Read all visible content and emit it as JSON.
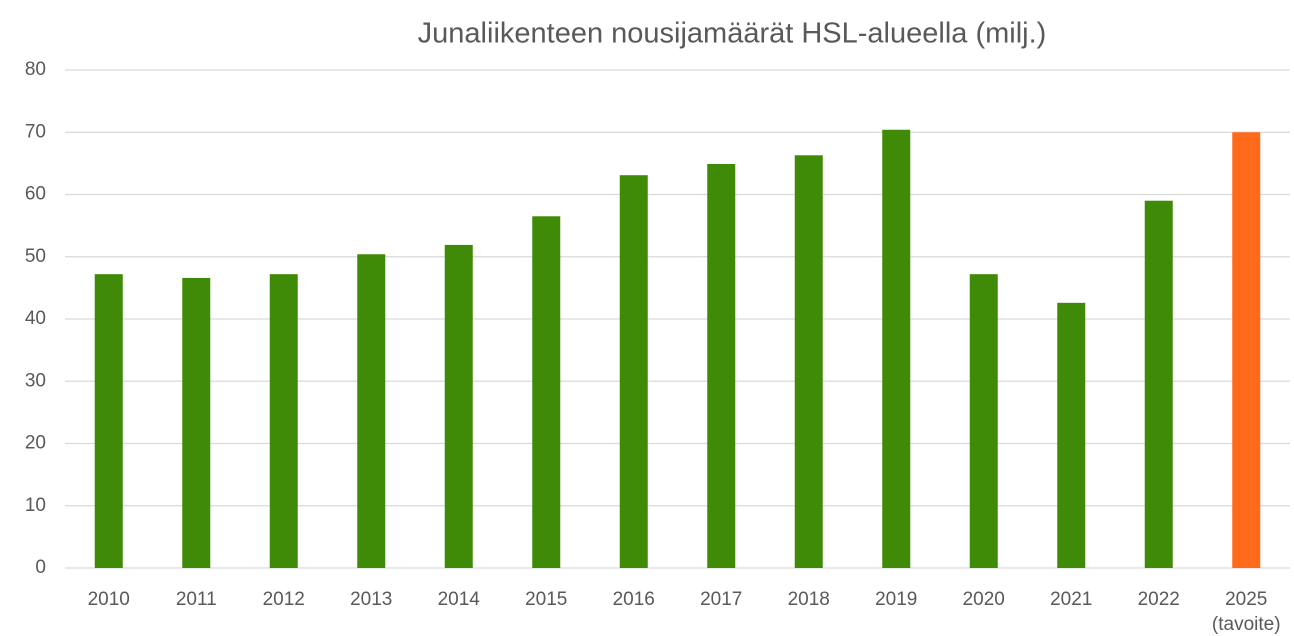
{
  "chart_data": {
    "type": "bar",
    "title": "Junaliikenteen nousijamäärät HSL-alueella (milj.)",
    "categories": [
      "2010",
      "2011",
      "2012",
      "2013",
      "2014",
      "2015",
      "2016",
      "2017",
      "2018",
      "2019",
      "2020",
      "2021",
      "2022",
      "2025"
    ],
    "annotation": "(tavoite)",
    "values": [
      47.2,
      46.6,
      47.2,
      50.4,
      51.9,
      56.5,
      63.1,
      64.9,
      66.3,
      70.4,
      47.2,
      42.6,
      59.0,
      70.0
    ],
    "colors": [
      "#3f8a06",
      "#3f8a06",
      "#3f8a06",
      "#3f8a06",
      "#3f8a06",
      "#3f8a06",
      "#3f8a06",
      "#3f8a06",
      "#3f8a06",
      "#3f8a06",
      "#3f8a06",
      "#3f8a06",
      "#3f8a06",
      "#ff6a1a"
    ],
    "ylim": [
      0,
      80
    ],
    "yticks": [
      0,
      10,
      20,
      30,
      40,
      50,
      60,
      70,
      80
    ],
    "grid": true
  }
}
